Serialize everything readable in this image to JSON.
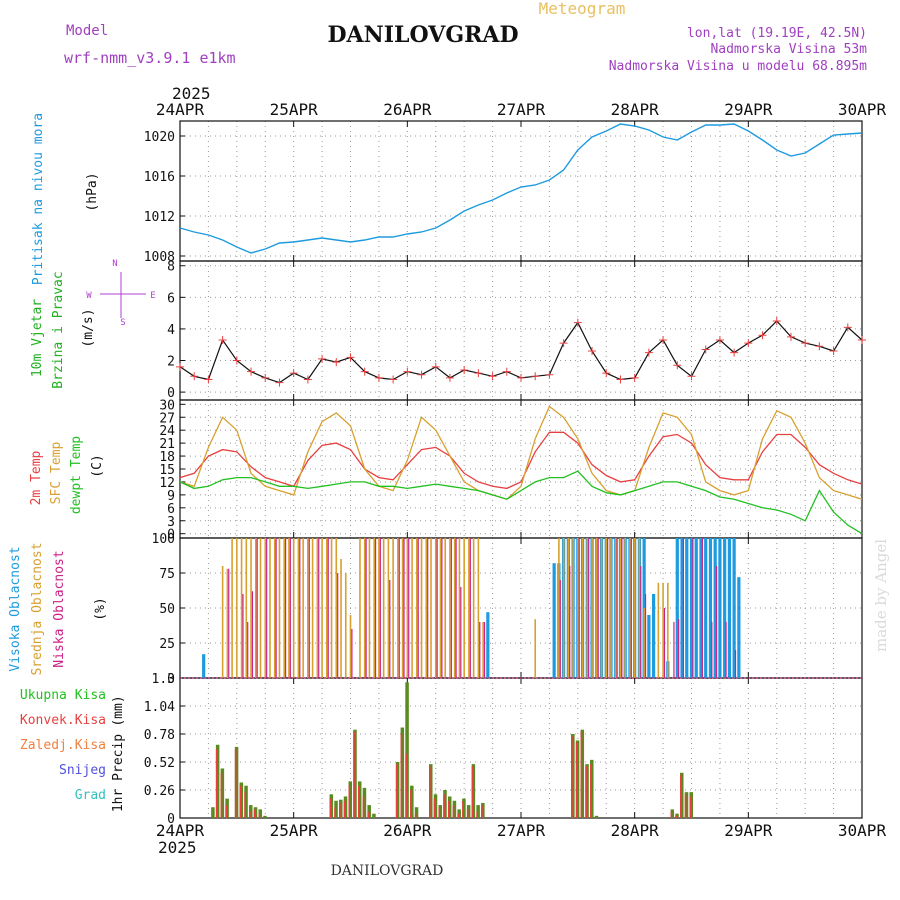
{
  "header": {
    "model_label": "Model",
    "model_name": "wrf-nmm_v3.9.1 e1km",
    "title": "DANILOVGRAD",
    "subtitle": "Meteogram",
    "lonlat": "lon,lat (19.19E, 42.5N)",
    "altitude": "Nadmorska Visina 53m",
    "model_altitude": "Nadmorska Visina u modelu 68.895m",
    "year": "2025",
    "footer": "DANILOVGRAD",
    "credit": "made by Angel"
  },
  "colors": {
    "pressure": "#1e9be0",
    "wind_title": "#22b022",
    "wind_compass": "#b040d0",
    "temp2m": "#e84040",
    "sfc": "#d8a030",
    "dew": "#22c022",
    "high_cloud": "#1e9be0",
    "mid_cloud": "#d8a030",
    "low_cloud": "#cc2288",
    "precip_total": "#5a8a20",
    "precip_conv": "#e84040",
    "precip_freeze": "#f08040",
    "snow": "#5050e0",
    "hail": "#30c0c0",
    "purple_text": "#a040c0",
    "gold_text": "#e8c060"
  },
  "chart_data": [
    {
      "type": "line",
      "panel": "pressure",
      "ylabel_name": "Pritisak na nivou mora",
      "ylabel_unit": "(hPa)",
      "x_unit": "hours since 24APR 00",
      "xlim": [
        0,
        144
      ],
      "ylim": [
        1007.5,
        1021.5
      ],
      "yticks": [
        1008,
        1012,
        1016,
        1020
      ],
      "x": [
        0,
        3,
        6,
        9,
        12,
        15,
        18,
        21,
        24,
        27,
        30,
        33,
        36,
        39,
        42,
        45,
        48,
        51,
        54,
        57,
        60,
        63,
        66,
        69,
        72,
        75,
        78,
        81,
        84,
        87,
        90,
        93,
        96,
        99,
        102,
        105,
        108,
        111,
        114,
        117,
        120,
        123,
        126,
        129,
        132,
        135,
        138,
        141,
        144
      ],
      "values": [
        1010.8,
        1010.4,
        1010.1,
        1009.6,
        1008.9,
        1008.3,
        1008.7,
        1009.3,
        1009.4,
        1009.6,
        1009.8,
        1009.6,
        1009.4,
        1009.6,
        1009.9,
        1009.9,
        1010.2,
        1010.4,
        1010.8,
        1011.6,
        1012.5,
        1013.1,
        1013.6,
        1014.3,
        1014.9,
        1015.1,
        1015.6,
        1016.6,
        1018.6,
        1019.9,
        1020.5,
        1021.2,
        1021.0,
        1020.6,
        1019.9,
        1019.6,
        1020.4,
        1021.1,
        1021.1,
        1021.2,
        1020.5,
        1019.6,
        1018.6,
        1018.0,
        1018.3,
        1019.2,
        1020.1,
        1020.2,
        1020.3
      ]
    },
    {
      "type": "line",
      "panel": "wind",
      "ylabel_name": "10m Vjetar",
      "ylabel_name2": "Brzina i Pravac",
      "ylabel_unit": "(m/s)",
      "compass": [
        "N",
        "E",
        "S",
        "W"
      ],
      "xlim": [
        0,
        144
      ],
      "ylim": [
        -0.5,
        8.3
      ],
      "yticks": [
        0,
        2,
        4,
        6,
        8
      ],
      "x": [
        0,
        3,
        6,
        9,
        12,
        15,
        18,
        21,
        24,
        27,
        30,
        33,
        36,
        39,
        42,
        45,
        48,
        51,
        54,
        57,
        60,
        63,
        66,
        69,
        72,
        75,
        78,
        81,
        84,
        87,
        90,
        93,
        96,
        99,
        102,
        105,
        108,
        111,
        114,
        117,
        120,
        123,
        126,
        129,
        132,
        135,
        138,
        141,
        144
      ],
      "values": [
        1.6,
        1.0,
        0.8,
        3.3,
        2.0,
        1.3,
        0.9,
        0.6,
        1.2,
        0.8,
        2.1,
        1.9,
        2.2,
        1.3,
        0.9,
        0.8,
        1.3,
        1.1,
        1.6,
        0.9,
        1.4,
        1.2,
        1.0,
        1.3,
        0.9,
        1.0,
        1.1,
        3.1,
        4.4,
        2.6,
        1.2,
        0.8,
        0.9,
        2.5,
        3.3,
        1.7,
        1.0,
        2.7,
        3.3,
        2.5,
        3.1,
        3.6,
        4.5,
        3.5,
        3.1,
        2.9,
        2.6,
        4.1,
        3.3
      ]
    },
    {
      "type": "line",
      "panel": "temperature",
      "ylabel_name": "2m Temp",
      "ylabel_name2": "SFC Temp",
      "ylabel_name3": "dewpt Temp",
      "ylabel_unit": "(C)",
      "xlim": [
        0,
        144
      ],
      "ylim": [
        -1,
        31
      ],
      "yticks": [
        0,
        3,
        6,
        9,
        12,
        15,
        18,
        21,
        24,
        27,
        30
      ],
      "x": [
        0,
        3,
        6,
        9,
        12,
        15,
        18,
        21,
        24,
        27,
        30,
        33,
        36,
        39,
        42,
        45,
        48,
        51,
        54,
        57,
        60,
        63,
        66,
        69,
        72,
        75,
        78,
        81,
        84,
        87,
        90,
        93,
        96,
        99,
        102,
        105,
        108,
        111,
        114,
        117,
        120,
        123,
        126,
        129,
        132,
        135,
        138,
        141,
        144
      ],
      "series": [
        {
          "name": "2m Temp",
          "values": [
            13,
            14,
            18,
            19.5,
            19,
            15.5,
            13,
            12,
            11,
            17,
            20.5,
            21,
            19.5,
            15,
            13,
            12.5,
            16,
            19.5,
            20,
            18,
            14,
            12,
            11,
            10.5,
            12,
            19,
            23.5,
            23.5,
            21,
            16,
            13.5,
            12,
            12.5,
            18,
            22.5,
            23,
            21,
            16,
            13,
            12.5,
            12.5,
            19,
            23,
            23,
            20,
            16,
            14,
            12.5,
            11.5
          ]
        },
        {
          "name": "SFC Temp",
          "values": [
            12,
            11,
            20,
            27,
            24,
            14,
            11,
            10,
            9,
            19,
            26,
            28,
            25,
            15,
            11,
            10,
            17,
            27,
            24,
            18,
            12,
            10,
            9,
            8,
            11,
            22,
            29.5,
            27,
            22,
            14,
            10,
            9,
            10,
            20,
            28,
            27,
            23,
            12,
            10,
            9,
            10,
            22,
            28.5,
            27,
            21,
            13,
            10,
            9,
            8
          ]
        },
        {
          "name": "dewpt Temp",
          "values": [
            12,
            10.5,
            11,
            12.5,
            13,
            13,
            12,
            11,
            11,
            10.5,
            11,
            11.5,
            12,
            12,
            11,
            11,
            10.5,
            11,
            11.5,
            11,
            10.5,
            10,
            9,
            8,
            10,
            12,
            13,
            13,
            14.5,
            11,
            9.5,
            9,
            10,
            11,
            12,
            12,
            11,
            10,
            8.5,
            8,
            7,
            6,
            5.5,
            4.5,
            3,
            10,
            5,
            2,
            0
          ]
        }
      ]
    },
    {
      "type": "bar",
      "panel": "clouds",
      "ylabel_name": "Visoka Oblacnost",
      "ylabel_name2": "Srednja Oblacnost",
      "ylabel_name3": "Niska Oblacnost",
      "ylabel_unit": "(%)",
      "xlim": [
        0,
        144
      ],
      "ylim": [
        0,
        100
      ],
      "yticks": [
        0,
        25,
        50,
        75,
        100
      ],
      "high_x": [
        5,
        65,
        79,
        80,
        81,
        82,
        83,
        84,
        85,
        86,
        87,
        88,
        89,
        90,
        91,
        92,
        93,
        94,
        95,
        96,
        97,
        98,
        99,
        100,
        103,
        105,
        106,
        107,
        108,
        109,
        110,
        111,
        112,
        113,
        114,
        115,
        116,
        117,
        118
      ],
      "high_values": [
        17,
        47,
        82,
        82,
        100,
        100,
        100,
        100,
        100,
        100,
        100,
        100,
        100,
        100,
        100,
        100,
        100,
        100,
        100,
        100,
        100,
        100,
        45,
        60,
        12,
        100,
        100,
        100,
        100,
        100,
        100,
        100,
        100,
        100,
        100,
        100,
        100,
        100,
        72
      ],
      "mid_x": [
        9,
        10,
        11,
        12,
        13,
        14,
        15,
        16,
        17,
        18,
        19,
        20,
        21,
        22,
        23,
        24,
        25,
        26,
        27,
        28,
        29,
        30,
        31,
        32,
        33,
        34,
        35,
        36,
        38,
        39,
        40,
        41,
        42,
        43,
        44,
        45,
        46,
        47,
        48,
        49,
        50,
        51,
        52,
        53,
        54,
        55,
        56,
        57,
        58,
        59,
        60,
        61,
        62,
        63,
        64,
        75,
        80,
        81,
        82,
        83,
        84,
        85,
        86,
        87,
        88,
        89,
        90,
        91,
        92,
        93,
        94,
        95,
        96,
        97,
        98,
        101,
        102,
        103
      ],
      "mid_values": [
        80,
        78,
        100,
        100,
        100,
        100,
        100,
        100,
        100,
        100,
        100,
        100,
        100,
        100,
        100,
        100,
        100,
        100,
        100,
        100,
        100,
        100,
        100,
        100,
        100,
        85,
        75,
        45,
        100,
        100,
        100,
        100,
        100,
        100,
        100,
        100,
        100,
        100,
        100,
        100,
        100,
        100,
        100,
        100,
        100,
        100,
        100,
        100,
        100,
        100,
        100,
        100,
        100,
        100,
        40,
        42,
        100,
        100,
        100,
        100,
        100,
        100,
        100,
        100,
        100,
        100,
        100,
        100,
        100,
        100,
        100,
        100,
        100,
        100,
        50,
        68,
        68,
        68
      ],
      "low_x": [
        10,
        13,
        14,
        15,
        16,
        18,
        20,
        22,
        23,
        25,
        27,
        29,
        31,
        33,
        36,
        39,
        41,
        42,
        44,
        46,
        47,
        48,
        50,
        52,
        54,
        55,
        57,
        58,
        59,
        61,
        63,
        64,
        80,
        82,
        84,
        86,
        88,
        90,
        92,
        93,
        95,
        97,
        98,
        102,
        104,
        105,
        106,
        108,
        110,
        112,
        113,
        115,
        117
      ],
      "low_values": [
        78,
        60,
        40,
        62,
        100,
        100,
        100,
        100,
        100,
        100,
        100,
        100,
        100,
        75,
        35,
        100,
        100,
        100,
        70,
        100,
        100,
        100,
        100,
        100,
        100,
        100,
        100,
        100,
        65,
        100,
        40,
        40,
        70,
        80,
        100,
        100,
        100,
        100,
        100,
        100,
        100,
        80,
        60,
        50,
        40,
        42,
        100,
        100,
        100,
        40,
        80,
        40,
        20
      ]
    },
    {
      "type": "bar",
      "panel": "precipitation",
      "ylabel_name": "1hr Precip",
      "ylabel_unit": "(mm)",
      "legend": [
        "Ukupna Kisa",
        "Konvek.Kisa",
        "Zaledj.Kisa",
        "Snijeg",
        "Grad"
      ],
      "xlim": [
        0,
        144
      ],
      "ylim": [
        0,
        1.3
      ],
      "yticks": [
        0,
        0.26,
        0.52,
        0.78,
        1.04,
        1.3
      ],
      "ytick_labels": [
        "0",
        "0.26",
        "0.52",
        "0.78",
        "1.04",
        "1.3"
      ],
      "x": [
        7,
        8,
        9,
        10,
        12,
        13,
        14,
        15,
        16,
        17,
        18,
        32,
        33,
        34,
        35,
        36,
        37,
        38,
        39,
        40,
        41,
        46,
        47,
        48,
        49,
        50,
        53,
        54,
        55,
        56,
        57,
        58,
        59,
        60,
        61,
        62,
        63,
        64,
        83,
        84,
        85,
        86,
        87,
        88,
        104,
        105,
        106,
        107,
        108
      ],
      "total": [
        0.1,
        0.68,
        0.46,
        0.18,
        0.66,
        0.33,
        0.3,
        0.12,
        0.1,
        0.08,
        0.02,
        0.22,
        0.16,
        0.17,
        0.2,
        0.34,
        0.82,
        0.34,
        0.28,
        0.12,
        0.04,
        0.52,
        0.84,
        1.26,
        0.3,
        0.1,
        0.5,
        0.22,
        0.12,
        0.26,
        0.2,
        0.16,
        0.08,
        0.18,
        0.12,
        0.5,
        0.12,
        0.14,
        0.78,
        0.72,
        0.82,
        0.5,
        0.54,
        0.02,
        0.08,
        0.04,
        0.42,
        0.24,
        0.24
      ],
      "convective": [
        0,
        0.64,
        0.42,
        0.12,
        0.64,
        0.3,
        0.24,
        0.06,
        0.08,
        0.04,
        0,
        0.18,
        0.1,
        0.14,
        0.16,
        0.3,
        0.8,
        0.3,
        0.2,
        0.06,
        0,
        0.5,
        0.78,
        0.6,
        0.26,
        0.04,
        0.48,
        0.18,
        0.1,
        0.22,
        0.16,
        0.12,
        0.04,
        0.16,
        0.08,
        0.48,
        0.06,
        0.12,
        0.76,
        0.7,
        0.8,
        0.48,
        0.5,
        0,
        0.06,
        0.02,
        0.4,
        0.22,
        0.2
      ]
    }
  ],
  "x_axis": {
    "top_labels": [
      "24APR",
      "25APR",
      "26APR",
      "27APR",
      "28APR",
      "29APR",
      "30APR"
    ],
    "bottom_labels": [
      "24APR",
      "25APR",
      "26APR",
      "27APR",
      "28APR",
      "29APR",
      "30APR"
    ],
    "tick_hours": [
      0,
      24,
      48,
      72,
      96,
      120,
      144
    ]
  }
}
